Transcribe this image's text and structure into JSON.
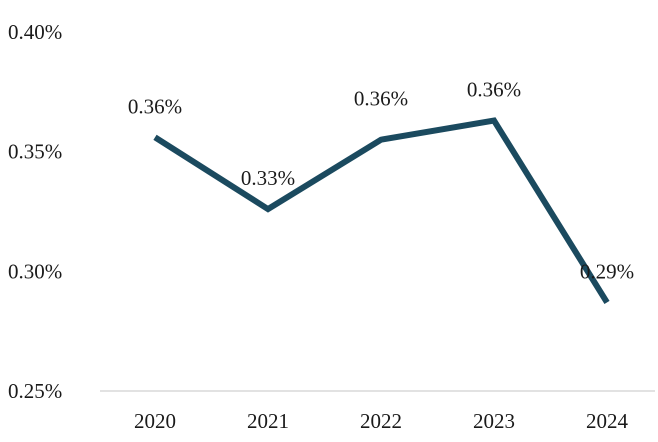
{
  "chart_data": {
    "type": "line",
    "categories": [
      "2020",
      "2021",
      "2022",
      "2023",
      "2024"
    ],
    "series": [
      {
        "values": [
          0.356,
          0.326,
          0.355,
          0.363,
          0.287
        ],
        "data_labels": [
          "0.36%",
          "0.33%",
          "0.36%",
          "0.36%",
          "0.29%"
        ]
      }
    ],
    "y_ticks": [
      {
        "value": 0.4,
        "label": "0.40%"
      },
      {
        "value": 0.35,
        "label": "0.35%"
      },
      {
        "value": 0.3,
        "label": "0.30%"
      },
      {
        "value": 0.25,
        "label": "0.25%"
      }
    ],
    "ylim": [
      0.25,
      0.4
    ],
    "grid": false,
    "legend": "none",
    "title": "",
    "xlabel": "",
    "ylabel": "",
    "colors": {
      "line": "#1b4a5f",
      "axis": "#d9d9d9"
    }
  }
}
